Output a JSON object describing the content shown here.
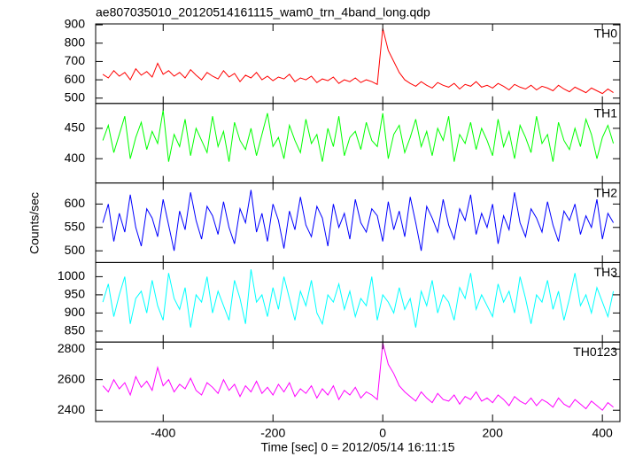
{
  "chart_data": {
    "type": "line",
    "title": "ae807035010_20120514161115_wam0_trn_4band_long.qdp",
    "xlabel": "Time [sec] 0 = 2012/05/14 16:11:15",
    "ylabel": "Counts/sec",
    "xlim": [
      -523,
      432
    ],
    "xticks": [
      -400,
      -200,
      0,
      200,
      400
    ],
    "x": [
      -510,
      -500,
      -490,
      -480,
      -470,
      -460,
      -450,
      -440,
      -430,
      -420,
      -410,
      -400,
      -390,
      -380,
      -370,
      -360,
      -350,
      -340,
      -330,
      -320,
      -310,
      -300,
      -290,
      -280,
      -270,
      -260,
      -250,
      -240,
      -230,
      -220,
      -210,
      -200,
      -190,
      -180,
      -170,
      -160,
      -150,
      -140,
      -130,
      -120,
      -110,
      -100,
      -90,
      -80,
      -70,
      -60,
      -50,
      -40,
      -30,
      -20,
      -10,
      0,
      10,
      20,
      30,
      40,
      50,
      60,
      70,
      80,
      90,
      100,
      110,
      120,
      130,
      140,
      150,
      160,
      170,
      180,
      190,
      200,
      210,
      220,
      230,
      240,
      250,
      260,
      270,
      280,
      290,
      300,
      310,
      320,
      330,
      340,
      350,
      360,
      370,
      380,
      390,
      400,
      410,
      420
    ],
    "series": [
      {
        "name": "TH0",
        "color": "#ff0000",
        "ylim": [
          471,
          905
        ],
        "yticks": [
          500,
          600,
          700,
          800,
          900
        ],
        "values": [
          630,
          610,
          650,
          620,
          640,
          600,
          660,
          625,
          645,
          615,
          690,
          630,
          650,
          620,
          640,
          610,
          655,
          625,
          600,
          640,
          620,
          605,
          650,
          615,
          635,
          590,
          625,
          610,
          640,
          600,
          620,
          595,
          615,
          605,
          630,
          590,
          610,
          600,
          620,
          585,
          605,
          595,
          615,
          580,
          600,
          590,
          610,
          585,
          600,
          590,
          575,
          880,
          760,
          700,
          640,
          600,
          580,
          565,
          590,
          570,
          555,
          585,
          570,
          560,
          580,
          550,
          575,
          565,
          590,
          560,
          570,
          555,
          580,
          565,
          545,
          575,
          560,
          550,
          570,
          545,
          565,
          555,
          540,
          570,
          550,
          535,
          560,
          545,
          530,
          555,
          540,
          525,
          550,
          530
        ]
      },
      {
        "name": "TH1",
        "color": "#00ff00",
        "ylim": [
          360,
          491
        ],
        "yticks": [
          400,
          450
        ],
        "values": [
          430,
          455,
          410,
          440,
          470,
          400,
          435,
          460,
          415,
          445,
          425,
          480,
          395,
          440,
          420,
          465,
          405,
          450,
          430,
          410,
          470,
          420,
          445,
          395,
          460,
          430,
          415,
          450,
          405,
          440,
          475,
          420,
          435,
          400,
          455,
          430,
          410,
          465,
          425,
          440,
          395,
          450,
          420,
          470,
          405,
          435,
          445,
          415,
          460,
          430,
          420,
          475,
          400,
          440,
          455,
          410,
          435,
          465,
          420,
          445,
          405,
          450,
          430,
          470,
          395,
          440,
          425,
          460,
          415,
          450,
          430,
          405,
          465,
          420,
          445,
          400,
          455,
          435,
          410,
          470,
          425,
          440,
          395,
          460,
          430,
          415,
          450,
          420,
          465,
          440,
          400,
          435,
          455,
          425
        ]
      },
      {
        "name": "TH2",
        "color": "#0000ff",
        "ylim": [
          475,
          645
        ],
        "yticks": [
          500,
          550,
          600
        ],
        "values": [
          560,
          600,
          520,
          580,
          540,
          620,
          550,
          510,
          590,
          570,
          530,
          610,
          555,
          500,
          585,
          545,
          625,
          565,
          525,
          595,
          575,
          535,
          605,
          550,
          515,
          590,
          560,
          630,
          540,
          580,
          520,
          600,
          565,
          505,
          585,
          545,
          615,
          555,
          530,
          595,
          570,
          510,
          600,
          550,
          580,
          525,
          610,
          560,
          540,
          590,
          575,
          520,
          605,
          545,
          585,
          530,
          615,
          560,
          500,
          595,
          570,
          540,
          610,
          555,
          525,
          590,
          565,
          620,
          535,
          580,
          550,
          600,
          515,
          575,
          545,
          625,
          560,
          530,
          590,
          570,
          540,
          605,
          555,
          520,
          585,
          565,
          600,
          535,
          575,
          550,
          610,
          525,
          580,
          560
        ]
      },
      {
        "name": "TH3",
        "color": "#00ffff",
        "ylim": [
          820,
          1039
        ],
        "yticks": [
          850,
          900,
          950,
          1000
        ],
        "values": [
          930,
          980,
          890,
          950,
          1000,
          870,
          940,
          960,
          900,
          990,
          920,
          880,
          1010,
          940,
          910,
          970,
          860,
          950,
          930,
          1000,
          900,
          960,
          920,
          880,
          990,
          940,
          870,
          1020,
          930,
          950,
          890,
          970,
          910,
          1000,
          940,
          880,
          960,
          920,
          990,
          900,
          870,
          950,
          930,
          980,
          910,
          960,
          890,
          940,
          920,
          1000,
          880,
          950,
          930,
          900,
          970,
          910,
          940,
          860,
          960,
          920,
          990,
          900,
          950,
          930,
          880,
          970,
          940,
          1010,
          910,
          950,
          920,
          890,
          980,
          930,
          960,
          900,
          1000,
          940,
          870,
          950,
          930,
          990,
          910,
          960,
          880,
          940,
          1010,
          920,
          950,
          900,
          970,
          930,
          890,
          960
        ]
      },
      {
        "name": "TH0123",
        "color": "#ff00ff",
        "ylim": [
          2326,
          2846
        ],
        "yticks": [
          2400,
          2600,
          2800
        ],
        "values": [
          2560,
          2520,
          2600,
          2540,
          2580,
          2500,
          2620,
          2550,
          2590,
          2530,
          2680,
          2560,
          2600,
          2520,
          2570,
          2540,
          2610,
          2530,
          2500,
          2580,
          2550,
          2510,
          2600,
          2530,
          2570,
          2490,
          2560,
          2520,
          2590,
          2510,
          2550,
          2500,
          2570,
          2520,
          2580,
          2490,
          2540,
          2510,
          2560,
          2480,
          2540,
          2500,
          2560,
          2470,
          2530,
          2500,
          2550,
          2480,
          2520,
          2500,
          2470,
          2840,
          2700,
          2640,
          2560,
          2520,
          2490,
          2460,
          2520,
          2480,
          2450,
          2510,
          2470,
          2460,
          2500,
          2440,
          2490,
          2470,
          2520,
          2460,
          2480,
          2450,
          2500,
          2470,
          2430,
          2490,
          2460,
          2440,
          2480,
          2430,
          2470,
          2450,
          2420,
          2480,
          2440,
          2420,
          2470,
          2440,
          2410,
          2460,
          2430,
          2400,
          2450,
          2420
        ]
      }
    ]
  }
}
